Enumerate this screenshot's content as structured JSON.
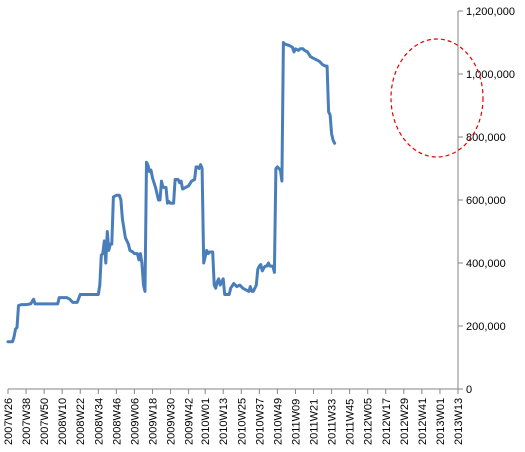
{
  "chart_data": {
    "type": "line",
    "title": "",
    "xlabel": "",
    "ylabel": "",
    "ylim": [
      0,
      1200000
    ],
    "y_axis_side": "right",
    "y_ticks": [
      0,
      200000,
      400000,
      600000,
      800000,
      1000000,
      1200000
    ],
    "y_tick_labels": [
      "0",
      "200,000",
      "400,000",
      "600,000",
      "800,000",
      "1,000,000",
      "1,200,000"
    ],
    "x_tick_labels": [
      "2007W26",
      "2007W38",
      "2007W50",
      "2008W10",
      "2008W22",
      "2008W34",
      "2008W46",
      "2009W06",
      "2009W18",
      "2009W30",
      "2009W42",
      "2010W01",
      "2010W13",
      "2010W25",
      "2010W37",
      "2010W49",
      "2011W09",
      "2011W21",
      "2011W33",
      "2011W45",
      "2012W05",
      "2012W17",
      "2012W29",
      "2012W41",
      "2013W01",
      "2013W13"
    ],
    "grid": false,
    "series_color": "#4a7ebb",
    "annotation": {
      "shape": "dashed-ellipse",
      "color": "#e60000"
    },
    "series": [
      {
        "points": [
          [
            "2007W26",
            150000
          ],
          [
            "2007W29",
            150000
          ],
          [
            "2007W30",
            165000
          ],
          [
            "2007W31",
            190000
          ],
          [
            "2007W32",
            195000
          ],
          [
            "2007W33",
            265000
          ],
          [
            "2007W35",
            268000
          ],
          [
            "2007W38",
            268000
          ],
          [
            "2007W41",
            270000
          ],
          [
            "2007W43",
            285000
          ],
          [
            "2007W44",
            270000
          ],
          [
            "2007W50",
            270000
          ],
          [
            "2008W04",
            270000
          ],
          [
            "2008W07",
            270000
          ],
          [
            "2008W08",
            290000
          ],
          [
            "2008W13",
            290000
          ],
          [
            "2008W15",
            285000
          ],
          [
            "2008W17",
            275000
          ],
          [
            "2008W20",
            275000
          ],
          [
            "2008W22",
            300000
          ],
          [
            "2008W34",
            300000
          ],
          [
            "2008W35",
            330000
          ],
          [
            "2008W36",
            425000
          ],
          [
            "2008W37",
            430000
          ],
          [
            "2008W38",
            470000
          ],
          [
            "2008W39",
            400000
          ],
          [
            "2008W40",
            500000
          ],
          [
            "2008W41",
            440000
          ],
          [
            "2008W42",
            460000
          ],
          [
            "2008W43",
            460000
          ],
          [
            "2008W44",
            610000
          ],
          [
            "2008W46",
            615000
          ],
          [
            "2008W48",
            615000
          ],
          [
            "2008W49",
            600000
          ],
          [
            "2008W50",
            540000
          ],
          [
            "2008W52",
            480000
          ],
          [
            "2009W01",
            470000
          ],
          [
            "2009W02",
            460000
          ],
          [
            "2009W03",
            440000
          ],
          [
            "2009W05",
            435000
          ],
          [
            "2009W06",
            430000
          ],
          [
            "2009W08",
            430000
          ],
          [
            "2009W09",
            410000
          ],
          [
            "2009W10",
            430000
          ],
          [
            "2009W11",
            400000
          ],
          [
            "2009W12",
            330000
          ],
          [
            "2009W13",
            310000
          ],
          [
            "2009W14",
            720000
          ],
          [
            "2009W15",
            710000
          ],
          [
            "2009W16",
            690000
          ],
          [
            "2009W17",
            695000
          ],
          [
            "2009W18",
            670000
          ],
          [
            "2009W20",
            640000
          ],
          [
            "2009W22",
            600000
          ],
          [
            "2009W23",
            600000
          ],
          [
            "2009W24",
            660000
          ],
          [
            "2009W25",
            640000
          ],
          [
            "2009W27",
            640000
          ],
          [
            "2009W28",
            590000
          ],
          [
            "2009W29",
            595000
          ],
          [
            "2009W30",
            590000
          ],
          [
            "2009W32",
            590000
          ],
          [
            "2009W33",
            665000
          ],
          [
            "2009W35",
            665000
          ],
          [
            "2009W36",
            655000
          ],
          [
            "2009W37",
            660000
          ],
          [
            "2009W38",
            635000
          ],
          [
            "2009W40",
            640000
          ],
          [
            "2009W42",
            645000
          ],
          [
            "2009W44",
            660000
          ],
          [
            "2009W46",
            665000
          ],
          [
            "2009W47",
            705000
          ],
          [
            "2009W48",
            705000
          ],
          [
            "2009W49",
            700000
          ],
          [
            "2009W50",
            712000
          ],
          [
            "2009W51",
            700000
          ],
          [
            "2009W52",
            400000
          ],
          [
            "2010W01",
            420000
          ],
          [
            "2010W02",
            440000
          ],
          [
            "2010W03",
            430000
          ],
          [
            "2010W04",
            435000
          ],
          [
            "2010W06",
            435000
          ],
          [
            "2010W07",
            330000
          ],
          [
            "2010W08",
            320000
          ],
          [
            "2010W09",
            340000
          ],
          [
            "2010W10",
            350000
          ],
          [
            "2010W11",
            330000
          ],
          [
            "2010W12",
            340000
          ],
          [
            "2010W13",
            350000
          ],
          [
            "2010W14",
            300000
          ],
          [
            "2010W15",
            300000
          ],
          [
            "2010W17",
            300000
          ],
          [
            "2010W18",
            320000
          ],
          [
            "2010W20",
            335000
          ],
          [
            "2010W22",
            325000
          ],
          [
            "2010W24",
            330000
          ],
          [
            "2010W25",
            325000
          ],
          [
            "2010W26",
            320000
          ],
          [
            "2010W28",
            315000
          ],
          [
            "2010W30",
            310000
          ],
          [
            "2010W31",
            325000
          ],
          [
            "2010W32",
            310000
          ],
          [
            "2010W33",
            310000
          ],
          [
            "2010W35",
            330000
          ],
          [
            "2010W36",
            380000
          ],
          [
            "2010W37",
            390000
          ],
          [
            "2010W38",
            395000
          ],
          [
            "2010W39",
            375000
          ],
          [
            "2010W40",
            385000
          ],
          [
            "2010W41",
            390000
          ],
          [
            "2010W42",
            390000
          ],
          [
            "2010W43",
            400000
          ],
          [
            "2010W44",
            390000
          ],
          [
            "2010W45",
            390000
          ],
          [
            "2010W46",
            390000
          ],
          [
            "2010W47",
            370000
          ],
          [
            "2010W48",
            700000
          ],
          [
            "2010W49",
            705000
          ],
          [
            "2010W50",
            700000
          ],
          [
            "2010W51",
            695000
          ],
          [
            "2010W52",
            660000
          ],
          [
            "2011W01",
            1100000
          ],
          [
            "2011W02",
            1095000
          ],
          [
            "2011W05",
            1090000
          ],
          [
            "2011W07",
            1085000
          ],
          [
            "2011W08",
            1070000
          ],
          [
            "2011W09",
            1080000
          ],
          [
            "2011W11",
            1075000
          ],
          [
            "2011W12",
            1080000
          ],
          [
            "2011W14",
            1080000
          ],
          [
            "2011W15",
            1075000
          ],
          [
            "2011W17",
            1070000
          ],
          [
            "2011W19",
            1055000
          ],
          [
            "2011W21",
            1050000
          ],
          [
            "2011W23",
            1045000
          ],
          [
            "2011W25",
            1040000
          ],
          [
            "2011W27",
            1030000
          ],
          [
            "2011W29",
            1025000
          ],
          [
            "2011W30",
            1025000
          ],
          [
            "2011W31",
            880000
          ],
          [
            "2011W32",
            870000
          ],
          [
            "2011W33",
            810000
          ],
          [
            "2011W34",
            790000
          ],
          [
            "2011W35",
            780000
          ]
        ]
      }
    ]
  }
}
